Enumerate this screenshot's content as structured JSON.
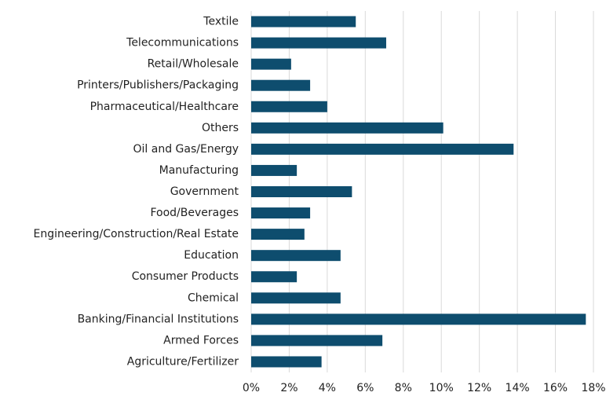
{
  "chart_data": {
    "type": "barh",
    "categories": [
      "Textile",
      "Telecommunications",
      "Retail/Wholesale",
      "Printers/Publishers/Packaging",
      "Pharmaceutical/Healthcare",
      "Others",
      "Oil and Gas/Energy",
      "Manufacturing",
      "Government",
      "Food/Beverages",
      "Engineering/Construction/Real Estate",
      "Education",
      "Consumer Products",
      "Chemical",
      "Banking/Financial Institutions",
      "Armed Forces",
      "Agriculture/Fertilizer"
    ],
    "values": [
      5.5,
      7.1,
      2.1,
      3.1,
      4.0,
      10.1,
      13.8,
      2.4,
      5.3,
      3.1,
      2.8,
      4.7,
      2.4,
      4.7,
      17.6,
      6.9,
      3.7
    ],
    "color": "#0e4d6e",
    "xlim": [
      0,
      18
    ],
    "xticks": [
      {
        "value": 0,
        "label": "0%"
      },
      {
        "value": 2,
        "label": "2%"
      },
      {
        "value": 4,
        "label": "4%"
      },
      {
        "value": 6,
        "label": "6%"
      },
      {
        "value": 8,
        "label": "8%"
      },
      {
        "value": 10,
        "label": "10%"
      },
      {
        "value": 12,
        "label": "12%"
      },
      {
        "value": 14,
        "label": "14%"
      },
      {
        "value": 16,
        "label": "16%"
      },
      {
        "value": 18,
        "label": "18%"
      }
    ],
    "grid": true
  }
}
